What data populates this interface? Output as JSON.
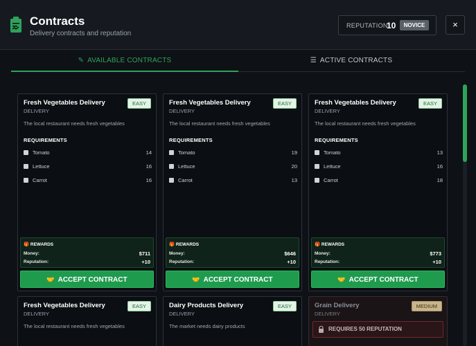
{
  "header": {
    "title": "Contracts",
    "subtitle": "Delivery contracts and reputation",
    "icon": "clipboard-icon",
    "reputation_label": "REPUTATION:",
    "reputation_value": "10",
    "reputation_rank": "NOVICE",
    "close_label": "×"
  },
  "tabs": [
    {
      "label": "AVAILABLE CONTRACTS",
      "icon": "edit-icon",
      "active": true
    },
    {
      "label": "ACTIVE CONTRACTS",
      "icon": "list-check-icon",
      "active": false
    }
  ],
  "labels": {
    "requirements": "REQUIREMENTS",
    "rewards": "REWARDS",
    "money": "Money:",
    "reputation": "Reputation:",
    "accept": "ACCEPT CONTRACT"
  },
  "contracts": [
    {
      "title": "Fresh Vegetables Delivery",
      "type": "DELIVERY",
      "difficulty": "EASY",
      "description": "The local restaurant needs fresh vegetables",
      "requirements": [
        {
          "item": "Tomato",
          "qty": "14"
        },
        {
          "item": "Lettuce",
          "qty": "16"
        },
        {
          "item": "Carrot",
          "qty": "16"
        }
      ],
      "money": "$711",
      "reputation": "+10"
    },
    {
      "title": "Fresh Vegetables Delivery",
      "type": "DELIVERY",
      "difficulty": "EASY",
      "description": "The local restaurant needs fresh vegetables",
      "requirements": [
        {
          "item": "Tomato",
          "qty": "19"
        },
        {
          "item": "Lettuce",
          "qty": "20"
        },
        {
          "item": "Carrot",
          "qty": "13"
        }
      ],
      "money": "$646",
      "reputation": "+10"
    },
    {
      "title": "Fresh Vegetables Delivery",
      "type": "DELIVERY",
      "difficulty": "EASY",
      "description": "The local restaurant needs fresh vegetables",
      "requirements": [
        {
          "item": "Tomato",
          "qty": "13"
        },
        {
          "item": "Lettuce",
          "qty": "16"
        },
        {
          "item": "Carrot",
          "qty": "18"
        }
      ],
      "money": "$773",
      "reputation": "+10"
    },
    {
      "title": "Fresh Vegetables Delivery",
      "type": "DELIVERY",
      "difficulty": "EASY",
      "description": "The local restaurant needs fresh vegetables"
    },
    {
      "title": "Dairy Products Delivery",
      "type": "DELIVERY",
      "difficulty": "EASY",
      "description": "The market needs dairy products"
    },
    {
      "title": "Grain Delivery",
      "type": "DELIVERY",
      "difficulty": "MEDIUM",
      "locked_text": "REQUIRES 50 REPUTATION"
    }
  ],
  "colors": {
    "accent": "#2ea35a",
    "background": "#0e1116",
    "easy_badge": "#e4f3e6",
    "medium_badge": "#c9b58a",
    "locked": "#6d2a2e"
  }
}
